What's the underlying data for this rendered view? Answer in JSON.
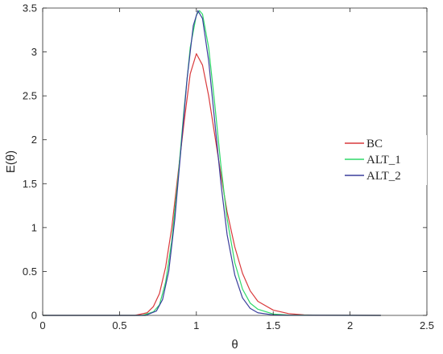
{
  "chart_data": {
    "type": "line",
    "title": "",
    "xlabel": "θ",
    "ylabel": "E(θ)",
    "xlim": [
      0,
      2.5
    ],
    "ylim": [
      0,
      3.5
    ],
    "xticks": [
      0,
      0.5,
      1,
      1.5,
      2,
      2.5
    ],
    "yticks": [
      0,
      0.5,
      1,
      1.5,
      2,
      2.5,
      3,
      3.5
    ],
    "xtick_labels": [
      "0",
      "0.5",
      "1",
      "1.5",
      "2",
      "2.5"
    ],
    "ytick_labels": [
      "0",
      "0.5",
      "1",
      "1.5",
      "2",
      "2.5",
      "3",
      "3.5"
    ],
    "grid": false,
    "legend_position": "right",
    "series": [
      {
        "name": "BC",
        "color": "#d9393b",
        "x": [
          0,
          0.6,
          0.68,
          0.72,
          0.76,
          0.8,
          0.84,
          0.88,
          0.92,
          0.96,
          1.0,
          1.04,
          1.08,
          1.12,
          1.16,
          1.2,
          1.25,
          1.3,
          1.35,
          1.4,
          1.5,
          1.6,
          1.7,
          1.8,
          2.2
        ],
        "y": [
          0,
          0,
          0.03,
          0.1,
          0.25,
          0.55,
          1.0,
          1.6,
          2.2,
          2.75,
          2.98,
          2.85,
          2.5,
          2.05,
          1.6,
          1.18,
          0.78,
          0.48,
          0.28,
          0.16,
          0.06,
          0.02,
          0.006,
          0.002,
          0
        ]
      },
      {
        "name": "ALT_1",
        "color": "#2ed968",
        "x": [
          0,
          0.65,
          0.72,
          0.76,
          0.8,
          0.84,
          0.88,
          0.92,
          0.96,
          1.0,
          1.02,
          1.04,
          1.08,
          1.12,
          1.16,
          1.2,
          1.25,
          1.3,
          1.35,
          1.4,
          1.5,
          1.6,
          1.8,
          2.2
        ],
        "y": [
          0,
          0,
          0.04,
          0.12,
          0.38,
          0.85,
          1.55,
          2.35,
          3.05,
          3.42,
          3.47,
          3.43,
          3.05,
          2.4,
          1.7,
          1.1,
          0.6,
          0.3,
          0.14,
          0.07,
          0.015,
          0.004,
          0.001,
          0
        ]
      },
      {
        "name": "ALT_2",
        "color": "#3a3e9c",
        "x": [
          0,
          0.67,
          0.74,
          0.78,
          0.82,
          0.86,
          0.9,
          0.94,
          0.98,
          1.01,
          1.04,
          1.08,
          1.12,
          1.16,
          1.2,
          1.25,
          1.3,
          1.35,
          1.4,
          1.5,
          1.6,
          2.2
        ],
        "y": [
          0,
          0,
          0.05,
          0.18,
          0.5,
          1.1,
          1.9,
          2.7,
          3.3,
          3.47,
          3.38,
          2.9,
          2.2,
          1.5,
          0.92,
          0.46,
          0.2,
          0.08,
          0.03,
          0.005,
          0.001,
          0
        ]
      }
    ]
  }
}
